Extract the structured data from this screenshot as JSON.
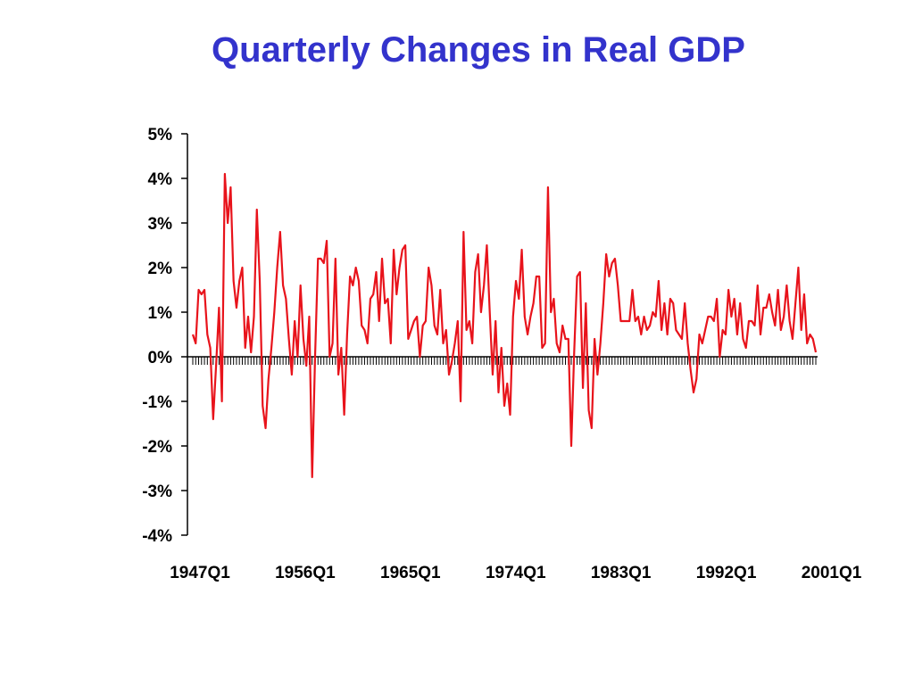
{
  "chart_data": {
    "type": "line",
    "title": "Quarterly Changes in Real GDP",
    "xlabel": "",
    "ylabel": "",
    "ylim": [
      -4,
      5
    ],
    "y_ticks": [
      "5%",
      "4%",
      "3%",
      "2%",
      "1%",
      "0%",
      "-1%",
      "-2%",
      "-3%",
      "-4%"
    ],
    "y_tick_values": [
      5,
      4,
      3,
      2,
      1,
      0,
      -1,
      -2,
      -3,
      -4
    ],
    "x_tick_labels": [
      "1947Q1",
      "1956Q1",
      "1965Q1",
      "1974Q1",
      "1983Q1",
      "1992Q1",
      "2001Q1"
    ],
    "x_start": "1947Q1",
    "grid": false,
    "series": [
      {
        "color": "#e8131b",
        "values": [
          0.5,
          0.3,
          1.5,
          1.4,
          1.5,
          0.5,
          0.2,
          -1.4,
          -0.2,
          1.1,
          -1.0,
          4.1,
          3.0,
          3.8,
          1.7,
          1.1,
          1.7,
          2.0,
          0.2,
          0.9,
          0.1,
          0.9,
          3.3,
          1.7,
          -1.1,
          -1.6,
          -0.5,
          0.2,
          1.0,
          2.0,
          2.8,
          1.6,
          1.3,
          0.4,
          -0.4,
          0.8,
          0.0,
          1.6,
          0.4,
          -0.2,
          0.9,
          -2.7,
          0.0,
          2.2,
          2.2,
          2.1,
          2.6,
          0.0,
          0.3,
          2.2,
          -0.4,
          0.2,
          -1.3,
          0.5,
          1.8,
          1.6,
          2.0,
          1.7,
          0.7,
          0.6,
          0.3,
          1.3,
          1.4,
          1.9,
          0.8,
          2.2,
          1.2,
          1.3,
          0.3,
          2.4,
          1.4,
          2.0,
          2.4,
          2.5,
          0.4,
          0.6,
          0.8,
          0.9,
          0.0,
          0.7,
          0.8,
          2.0,
          1.6,
          0.7,
          0.5,
          1.5,
          0.3,
          0.6,
          -0.4,
          -0.1,
          0.3,
          0.8,
          -1.0,
          2.8,
          0.6,
          0.8,
          0.3,
          1.9,
          2.3,
          1.0,
          1.6,
          2.5,
          1.0,
          -0.4,
          0.8,
          -0.8,
          0.2,
          -1.1,
          -0.6,
          -1.3,
          0.9,
          1.7,
          1.3,
          2.4,
          0.9,
          0.5,
          0.9,
          1.2,
          1.8,
          1.8,
          0.2,
          0.3,
          3.8,
          1.0,
          1.3,
          0.3,
          0.1,
          0.7,
          0.4,
          0.4,
          -2.0,
          0.1,
          1.8,
          1.9,
          -0.7,
          1.2,
          -1.2,
          -1.6,
          0.4,
          -0.4,
          0.3,
          1.2,
          2.3,
          1.8,
          2.1,
          2.2,
          1.6,
          0.8,
          0.8,
          0.8,
          0.8,
          1.5,
          0.8,
          0.9,
          0.5,
          0.9,
          0.6,
          0.7,
          1.0,
          0.9,
          1.7,
          0.6,
          1.2,
          0.5,
          1.3,
          1.2,
          0.6,
          0.5,
          0.4,
          1.2,
          0.3,
          -0.3,
          -0.8,
          -0.5,
          0.5,
          0.3,
          0.6,
          0.9,
          0.9,
          0.8,
          1.3,
          0.0,
          0.6,
          0.5,
          1.5,
          0.9,
          1.3,
          0.5,
          1.2,
          0.4,
          0.2,
          0.8,
          0.8,
          0.7,
          1.6,
          0.5,
          1.1,
          1.1,
          1.4,
          1.0,
          0.7,
          1.5,
          0.6,
          0.9,
          1.6,
          0.8,
          0.4,
          1.2,
          2.0,
          0.6,
          1.4,
          0.3,
          0.5,
          0.4,
          0.1
        ]
      }
    ]
  }
}
